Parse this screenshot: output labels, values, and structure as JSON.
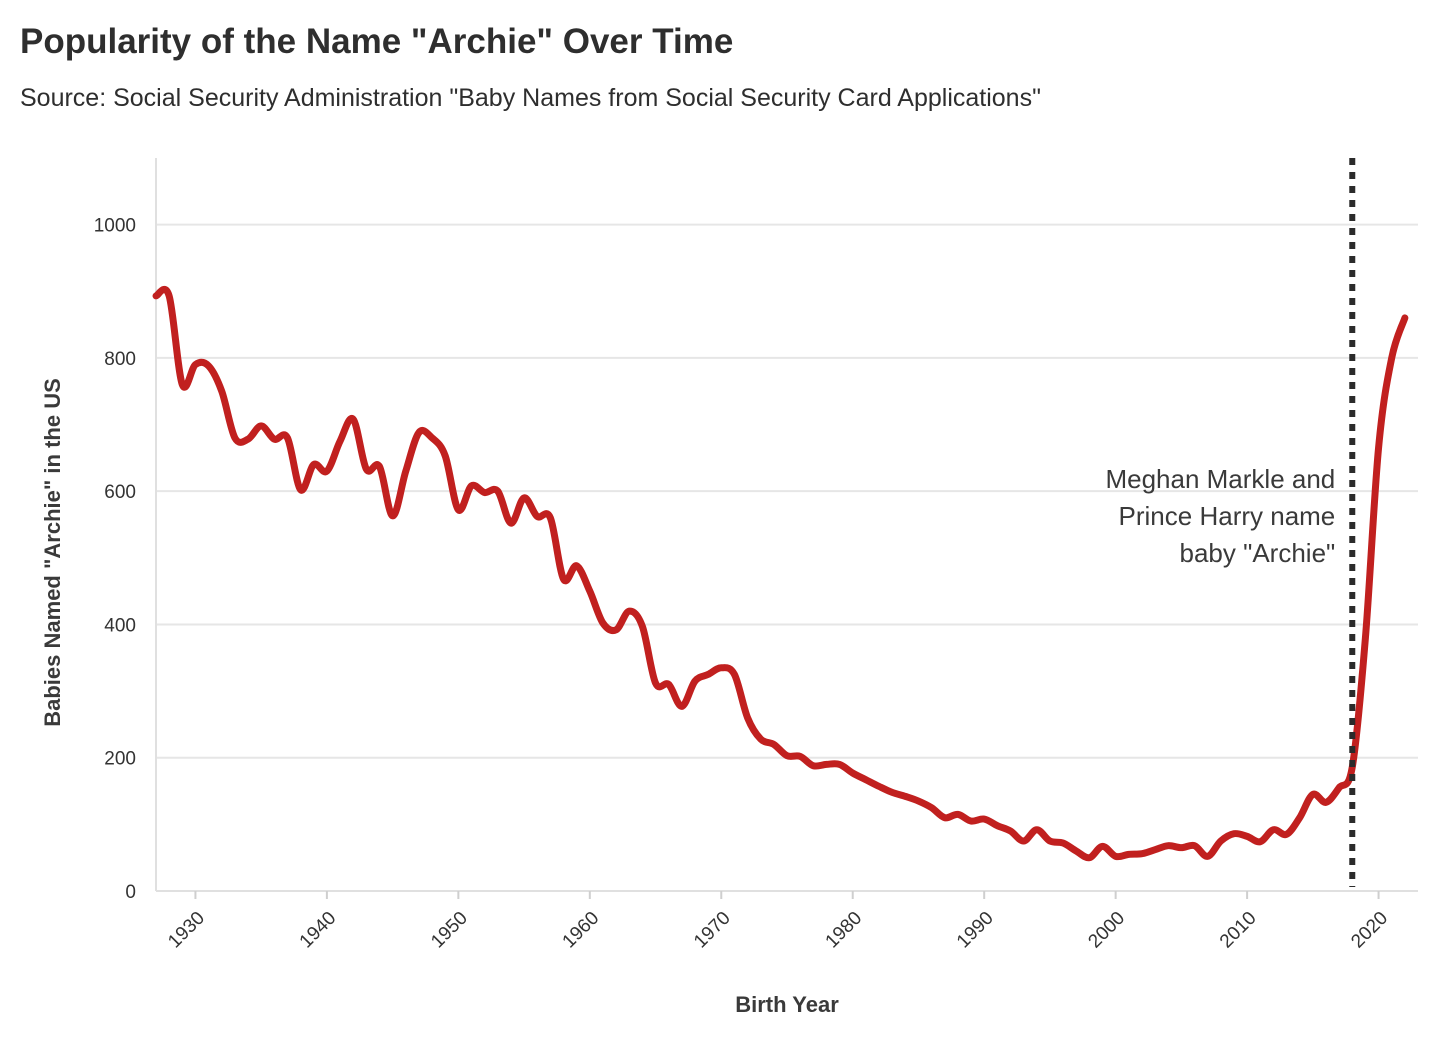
{
  "chart_data": {
    "type": "line",
    "title": "Popularity of the Name \"Archie\" Over Time",
    "subtitle": "Source: Social Security Administration \"Baby Names from Social Security Card Applications\"",
    "xlabel": "Birth Year",
    "ylabel": "Babies Named \"Archie\" in the US",
    "xlim": [
      1927,
      2023
    ],
    "ylim": [
      0,
      1100
    ],
    "x_ticks": [
      1930,
      1940,
      1950,
      1960,
      1970,
      1980,
      1990,
      2000,
      2010,
      2020
    ],
    "y_ticks": [
      0,
      200,
      400,
      600,
      800,
      1000
    ],
    "grid": "horizontal",
    "line_color": "#c1201f",
    "series": [
      {
        "x": [
          1927,
          1928,
          1929,
          1930,
          1931,
          1932,
          1933,
          1934,
          1935,
          1936,
          1937,
          1938,
          1939,
          1940,
          1941,
          1942,
          1943,
          1944,
          1945,
          1946,
          1947,
          1948,
          1949,
          1950,
          1951,
          1952,
          1953,
          1954,
          1955,
          1956,
          1957,
          1958,
          1959,
          1960,
          1961,
          1962,
          1963,
          1964,
          1965,
          1966,
          1967,
          1968,
          1969,
          1970,
          1971,
          1972,
          1973,
          1974,
          1975,
          1976,
          1977,
          1978,
          1979,
          1980,
          1981,
          1982,
          1983,
          1984,
          1985,
          1986,
          1987,
          1988,
          1989,
          1990,
          1991,
          1992,
          1993,
          1994,
          1995,
          1996,
          1997,
          1998,
          1999,
          2000,
          2001,
          2002,
          2003,
          2004,
          2005,
          2006,
          2007,
          2008,
          2009,
          2010,
          2011,
          2012,
          2013,
          2014,
          2015,
          2016,
          2017,
          2018,
          2019,
          2020,
          2021,
          2022
        ],
        "values": [
          893,
          893,
          760,
          790,
          788,
          750,
          680,
          678,
          698,
          678,
          680,
          602,
          640,
          630,
          675,
          708,
          633,
          637,
          563,
          630,
          688,
          680,
          653,
          572,
          608,
          598,
          600,
          552,
          590,
          562,
          560,
          468,
          488,
          450,
          402,
          392,
          420,
          397,
          312,
          310,
          277,
          315,
          325,
          335,
          325,
          260,
          228,
          220,
          203,
          202,
          188,
          190,
          190,
          177,
          167,
          157,
          148,
          142,
          135,
          125,
          110,
          115,
          105,
          108,
          98,
          90,
          75,
          92,
          75,
          72,
          60,
          50,
          67,
          52,
          55,
          56,
          62,
          68,
          65,
          68,
          52,
          75,
          86,
          82,
          74,
          92,
          85,
          110,
          145,
          133,
          155,
          186,
          380,
          665,
          800,
          860
        ]
      }
    ],
    "annotations": [
      {
        "x": 2018,
        "style": "dotted vertical line",
        "lines": [
          "Meghan Markle and",
          "Prince Harry name",
          "baby \"Archie\""
        ]
      }
    ]
  }
}
